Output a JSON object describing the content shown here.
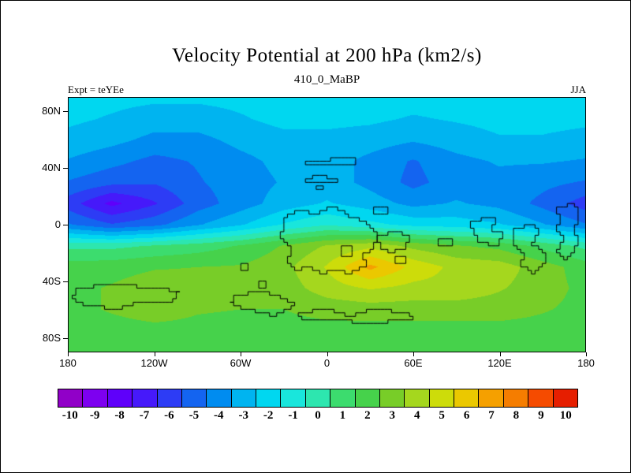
{
  "header": {
    "title": "Velocity Potential at 200 hPa (km2/s)",
    "subtitle": "410_0_MaBP",
    "experiment_label": "Expt = teYEe",
    "season_label": "JJA"
  },
  "chart_data": {
    "type": "heatmap",
    "title": "Velocity Potential at 200 hPa (km2/s)",
    "subtitle": "410_0_MaBP",
    "units": "km2/s",
    "season": "JJA",
    "lon_range": [
      -180,
      180
    ],
    "lat_range": [
      -90,
      90
    ],
    "x_ticks": [
      "180",
      "120W",
      "60W",
      "0",
      "60E",
      "120E",
      "180"
    ],
    "x_tick_lons": [
      -180,
      -120,
      -60,
      0,
      60,
      120,
      180
    ],
    "y_ticks": [
      "80N",
      "40N",
      "0",
      "40S",
      "80S"
    ],
    "y_tick_lats": [
      80,
      40,
      0,
      -40,
      -80
    ],
    "grid": {
      "lons": [
        -180,
        -150,
        -120,
        -90,
        -60,
        -30,
        0,
        30,
        60,
        90,
        120,
        150,
        180
      ],
      "lats": [
        90,
        75,
        60,
        45,
        30,
        15,
        0,
        -15,
        -30,
        -45,
        -60,
        -75,
        -90
      ],
      "values": [
        [
          -2.2,
          -2.2,
          -2.3,
          -2.3,
          -2.2,
          -2.1,
          -2.0,
          -2.0,
          -2.1,
          -2.1,
          -2.0,
          -2.1,
          -2.2
        ],
        [
          -2.3,
          -2.6,
          -3.0,
          -3.0,
          -2.6,
          -2.2,
          -2.2,
          -2.3,
          -2.6,
          -2.4,
          -2.2,
          -2.2,
          -2.3
        ],
        [
          -2.8,
          -3.2,
          -3.8,
          -3.8,
          -3.2,
          -2.8,
          -2.8,
          -3.0,
          -3.4,
          -3.0,
          -2.6,
          -2.6,
          -2.8
        ],
        [
          -3.6,
          -4.2,
          -4.8,
          -4.4,
          -3.8,
          -3.2,
          -3.0,
          -3.8,
          -4.6,
          -3.8,
          -3.4,
          -3.4,
          -3.6
        ],
        [
          -4.6,
          -5.2,
          -5.4,
          -4.6,
          -4.0,
          -3.4,
          -3.0,
          -3.8,
          -4.8,
          -4.0,
          -3.8,
          -4.2,
          -4.6
        ],
        [
          -6.0,
          -7.8,
          -6.6,
          -5.0,
          -4.0,
          -3.0,
          -2.4,
          -3.0,
          -3.8,
          -3.4,
          -3.8,
          -4.8,
          -6.0
        ],
        [
          -4.4,
          -5.4,
          -4.8,
          -3.6,
          -2.6,
          -1.4,
          -0.6,
          -1.2,
          -1.8,
          -2.0,
          -2.4,
          -3.4,
          -4.4
        ],
        [
          0.2,
          0.2,
          0.6,
          1.0,
          1.6,
          2.6,
          3.6,
          4.2,
          3.2,
          2.6,
          2.2,
          1.2,
          0.2
        ],
        [
          2.0,
          2.1,
          2.4,
          2.5,
          2.6,
          3.2,
          4.6,
          6.8,
          5.2,
          4.2,
          4.0,
          3.0,
          2.0
        ],
        [
          2.2,
          2.6,
          3.1,
          3.0,
          2.6,
          3.0,
          4.0,
          4.6,
          4.2,
          4.2,
          3.6,
          3.0,
          2.2
        ],
        [
          2.2,
          2.6,
          3.0,
          2.6,
          2.5,
          2.5,
          2.9,
          3.0,
          3.0,
          3.0,
          3.0,
          2.6,
          2.2
        ],
        [
          2.0,
          2.1,
          2.2,
          2.2,
          2.1,
          2.1,
          2.1,
          2.1,
          2.1,
          2.1,
          2.1,
          2.1,
          2.0
        ],
        [
          2.0,
          2.0,
          2.0,
          2.0,
          2.0,
          2.0,
          2.0,
          2.0,
          2.0,
          2.0,
          2.0,
          2.0,
          2.0
        ]
      ]
    },
    "colorbar": {
      "levels": [
        -10,
        -9,
        -8,
        -7,
        -6,
        -5,
        -4,
        -3,
        -2,
        -1,
        0,
        1,
        2,
        3,
        4,
        5,
        6,
        7,
        8,
        9,
        10
      ],
      "labels": [
        "-10",
        "-9",
        "-8",
        "-7",
        "-6",
        "-5",
        "-4",
        "-3",
        "-2",
        "-1",
        "0",
        "1",
        "2",
        "3",
        "4",
        "5",
        "6",
        "7",
        "8",
        "9",
        "10"
      ],
      "colors": [
        "#9100c8",
        "#7d00f0",
        "#5f00fa",
        "#4619fa",
        "#2d3cf5",
        "#1464f0",
        "#008cf0",
        "#00b4f0",
        "#00d7f0",
        "#19e6dc",
        "#2de6af",
        "#3cdc6e",
        "#46d24b",
        "#78cd28",
        "#a5d71e",
        "#cddc0a",
        "#ebc800",
        "#f5a000",
        "#f57d00",
        "#f54b00",
        "#e61e00"
      ]
    },
    "coastlines": [
      [
        [
          -16,
          43
        ],
        [
          20,
          43
        ],
        [
          20,
          47
        ],
        [
          2,
          47
        ],
        [
          2,
          45
        ],
        [
          -16,
          45
        ]
      ],
      [
        [
          -15,
          29
        ],
        [
          8,
          29
        ],
        [
          8,
          33
        ],
        [
          0,
          33
        ],
        [
          0,
          36
        ],
        [
          -10,
          36
        ],
        [
          -10,
          33
        ],
        [
          -15,
          33
        ]
      ],
      [
        [
          -8,
          24
        ],
        [
          -3,
          24
        ],
        [
          -3,
          28
        ],
        [
          -8,
          28
        ]
      ],
      [
        [
          -30,
          5
        ],
        [
          -20,
          10
        ],
        [
          -8,
          8
        ],
        [
          0,
          12
        ],
        [
          10,
          10
        ],
        [
          15,
          5
        ],
        [
          25,
          3
        ],
        [
          30,
          -3
        ],
        [
          35,
          -8
        ],
        [
          33,
          -18
        ],
        [
          25,
          -22
        ],
        [
          28,
          -30
        ],
        [
          18,
          -36
        ],
        [
          8,
          -32
        ],
        [
          -2,
          -36
        ],
        [
          -12,
          -30
        ],
        [
          -20,
          -33
        ],
        [
          -27,
          -25
        ],
        [
          -25,
          -15
        ],
        [
          -32,
          -8
        ],
        [
          -30,
          0
        ]
      ],
      [
        [
          10,
          -16
        ],
        [
          18,
          -16
        ],
        [
          18,
          -22
        ],
        [
          10,
          -22
        ]
      ],
      [
        [
          32,
          8
        ],
        [
          42,
          8
        ],
        [
          42,
          13
        ],
        [
          32,
          13
        ]
      ],
      [
        [
          36,
          -8
        ],
        [
          50,
          -6
        ],
        [
          58,
          -10
        ],
        [
          55,
          -18
        ],
        [
          44,
          -20
        ],
        [
          37,
          -15
        ]
      ],
      [
        [
          48,
          -22
        ],
        [
          55,
          -22
        ],
        [
          55,
          -27
        ],
        [
          48,
          -27
        ]
      ],
      [
        [
          78,
          -10
        ],
        [
          88,
          -10
        ],
        [
          88,
          -16
        ],
        [
          78,
          -16
        ]
      ],
      [
        [
          100,
          3
        ],
        [
          112,
          6
        ],
        [
          118,
          2
        ],
        [
          115,
          -4
        ],
        [
          122,
          -6
        ],
        [
          120,
          -14
        ],
        [
          108,
          -12
        ],
        [
          103,
          -6
        ]
      ],
      [
        [
          130,
          -2
        ],
        [
          142,
          0
        ],
        [
          147,
          -6
        ],
        [
          143,
          -14
        ],
        [
          150,
          -18
        ],
        [
          153,
          -28
        ],
        [
          144,
          -34
        ],
        [
          134,
          -28
        ],
        [
          137,
          -20
        ],
        [
          130,
          -12
        ]
      ],
      [
        [
          160,
          12
        ],
        [
          173,
          14
        ],
        [
          176,
          4
        ],
        [
          172,
          -6
        ],
        [
          175,
          -16
        ],
        [
          168,
          -24
        ],
        [
          161,
          -18
        ],
        [
          164,
          -8
        ],
        [
          159,
          -2
        ],
        [
          162,
          6
        ]
      ],
      [
        [
          -175,
          -44
        ],
        [
          -150,
          -42
        ],
        [
          -120,
          -44
        ],
        [
          -103,
          -48
        ],
        [
          -108,
          -56
        ],
        [
          -130,
          -54
        ],
        [
          -145,
          -60
        ],
        [
          -165,
          -58
        ],
        [
          -178,
          -52
        ]
      ],
      [
        [
          -65,
          -50
        ],
        [
          -45,
          -48
        ],
        [
          -30,
          -52
        ],
        [
          -22,
          -58
        ],
        [
          -35,
          -64
        ],
        [
          -55,
          -60
        ],
        [
          -68,
          -56
        ]
      ],
      [
        [
          -20,
          -62
        ],
        [
          0,
          -60
        ],
        [
          15,
          -64
        ],
        [
          30,
          -60
        ],
        [
          55,
          -62
        ],
        [
          60,
          -68
        ],
        [
          30,
          -70
        ],
        [
          5,
          -68
        ],
        [
          -15,
          -68
        ]
      ],
      [
        [
          -48,
          -40
        ],
        [
          -42,
          -40
        ],
        [
          -42,
          -44
        ],
        [
          -48,
          -44
        ]
      ],
      [
        [
          -60,
          -28
        ],
        [
          -54,
          -28
        ],
        [
          -54,
          -33
        ],
        [
          -60,
          -33
        ]
      ]
    ]
  }
}
